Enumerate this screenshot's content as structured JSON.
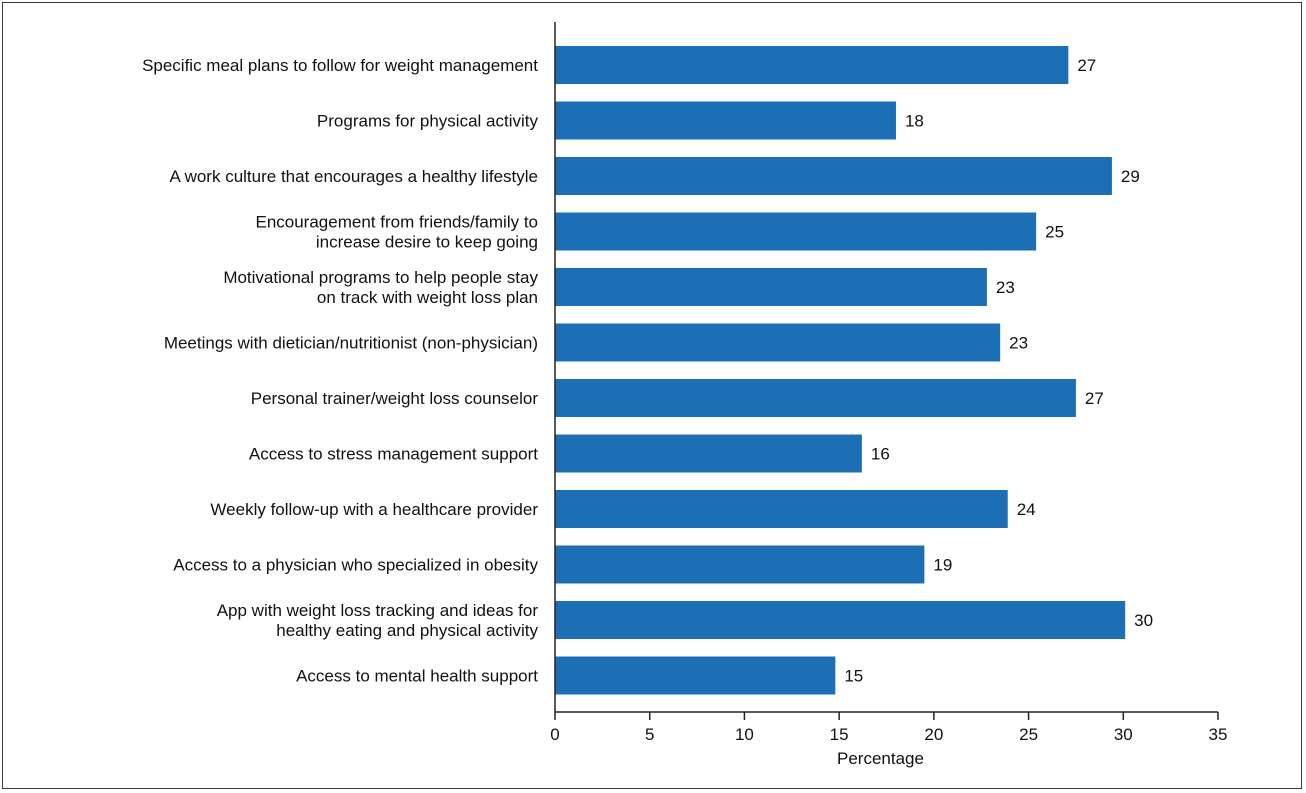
{
  "chart_data": {
    "type": "bar",
    "orientation": "horizontal",
    "categories": [
      [
        "Specific meal plans to follow for weight management"
      ],
      [
        "Programs for physical activity"
      ],
      [
        "A work culture that encourages a healthy lifestyle"
      ],
      [
        "Encouragement from friends/family to",
        "increase desire to keep going"
      ],
      [
        "Motivational programs to help people stay",
        "on track with weight loss plan"
      ],
      [
        "Meetings with dietician/nutritionist (non-physician)"
      ],
      [
        "Personal trainer/weight loss counselor"
      ],
      [
        "Access to stress management support"
      ],
      [
        "Weekly follow-up with a healthcare provider"
      ],
      [
        "Access to a physician who specialized in obesity"
      ],
      [
        "App with weight loss tracking and ideas for",
        "healthy eating and physical activity"
      ],
      [
        "Access to mental health support"
      ]
    ],
    "values": [
      27.1,
      18.0,
      29.4,
      25.4,
      22.8,
      23.5,
      27.5,
      16.2,
      23.9,
      19.5,
      30.1,
      14.8
    ],
    "data_labels": [
      "27",
      "18",
      "29",
      "25",
      "23",
      "23",
      "27",
      "16",
      "24",
      "19",
      "30",
      "15"
    ],
    "xlabel": "Percentage",
    "ylabel": "",
    "title": "",
    "xlim": [
      0,
      35
    ],
    "xticks": [
      0,
      5,
      10,
      15,
      20,
      25,
      30,
      35
    ],
    "grid": false,
    "colors": {
      "bar": "#1c6fb5",
      "axis": "#222222",
      "text": "#111111"
    }
  }
}
